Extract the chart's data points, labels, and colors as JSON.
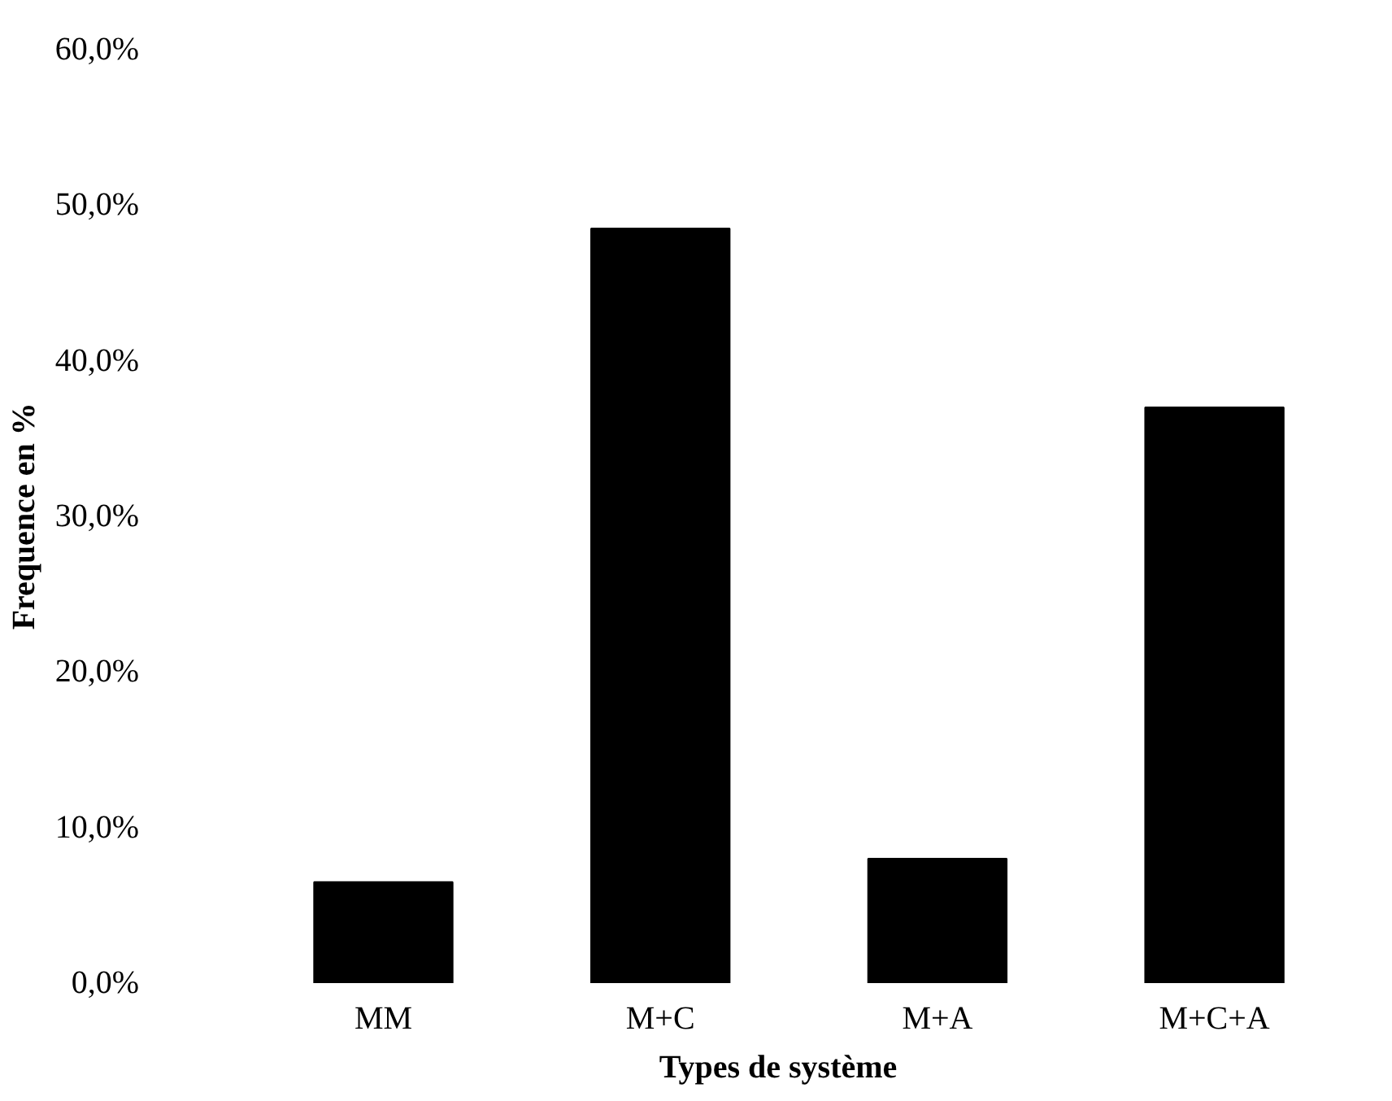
{
  "chart_data": {
    "type": "bar",
    "xlabel": "Types de système",
    "ylabel": "Frequence en %",
    "categories": [
      "MM",
      "M+C",
      "M+A",
      "M+C+A"
    ],
    "values": [
      6.5,
      48.5,
      8.0,
      37.0
    ],
    "color": "#000000",
    "ylim": [
      0,
      60
    ],
    "yticks": [
      {
        "value": 0,
        "label": "0,0%"
      },
      {
        "value": 10,
        "label": "10,0%"
      },
      {
        "value": 20,
        "label": "20,0%"
      },
      {
        "value": 30,
        "label": "30,0%"
      },
      {
        "value": 40,
        "label": "40,0%"
      },
      {
        "value": 50,
        "label": "50,0%"
      },
      {
        "value": 60,
        "label": "60,0%"
      }
    ],
    "grid": false
  }
}
